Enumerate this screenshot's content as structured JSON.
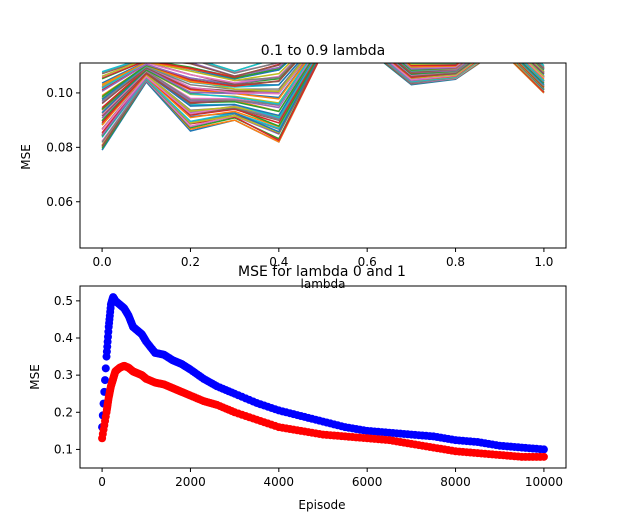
{
  "chart_data": [
    {
      "type": "line",
      "title": "0.1 to 0.9 lambda",
      "xlabel": "lambda",
      "ylabel": "MSE",
      "xlim": [
        -0.05,
        1.05
      ],
      "ylim": [
        0.043,
        0.111
      ],
      "xticks": [
        "0.0",
        "0.2",
        "0.4",
        "0.6",
        "0.8",
        "1.0"
      ],
      "yticks": [
        "0.06",
        "0.08",
        "0.10"
      ],
      "x": [
        0.0,
        0.1,
        0.2,
        0.3,
        0.4,
        0.5,
        0.6,
        0.7,
        0.8,
        0.9,
        1.0
      ],
      "series_count": 60,
      "series_lower": [
        0.079,
        0.104,
        0.086,
        0.09,
        0.082,
        0.115,
        0.116,
        0.103,
        0.105,
        0.116,
        0.1
      ],
      "series_upper": [
        0.108,
        0.113,
        0.113,
        0.108,
        0.113,
        0.125,
        0.125,
        0.111,
        0.111,
        0.125,
        0.11
      ],
      "colors": [
        "#1f77b4",
        "#ff7f0e",
        "#2ca02c",
        "#d62728",
        "#9467bd",
        "#8c564b",
        "#e377c2",
        "#7f7f7f",
        "#bcbd22",
        "#17becf"
      ],
      "grid": false
    },
    {
      "type": "scatter",
      "title": "MSE for lambda 0 and 1",
      "xlabel": "Episode",
      "ylabel": "MSE",
      "xlim": [
        -500,
        10500
      ],
      "ylim": [
        0.05,
        0.54
      ],
      "xticks": [
        "0",
        "2000",
        "4000",
        "6000",
        "8000",
        "10000"
      ],
      "yticks": [
        "0.1",
        "0.2",
        "0.3",
        "0.4",
        "0.5"
      ],
      "grid": false,
      "series": [
        {
          "color": "#0000ff",
          "x": [
            0,
            100,
            150,
            200,
            250,
            300,
            400,
            500,
            600,
            700,
            800,
            900,
            1000,
            1200,
            1400,
            1600,
            1800,
            2000,
            2300,
            2600,
            3000,
            3500,
            4000,
            4500,
            5000,
            5500,
            6000,
            6500,
            7000,
            7500,
            8000,
            8500,
            9000,
            9500,
            10000
          ],
          "values": [
            0.16,
            0.35,
            0.43,
            0.49,
            0.51,
            0.5,
            0.49,
            0.48,
            0.46,
            0.43,
            0.42,
            0.41,
            0.39,
            0.36,
            0.355,
            0.34,
            0.33,
            0.315,
            0.29,
            0.27,
            0.25,
            0.225,
            0.205,
            0.19,
            0.175,
            0.16,
            0.15,
            0.145,
            0.14,
            0.135,
            0.125,
            0.12,
            0.11,
            0.105,
            0.1
          ]
        },
        {
          "color": "#ff0000",
          "x": [
            0,
            100,
            150,
            200,
            250,
            300,
            400,
            500,
            600,
            700,
            800,
            900,
            1000,
            1200,
            1400,
            1600,
            1800,
            2000,
            2300,
            2600,
            3000,
            3500,
            4000,
            4500,
            5000,
            5500,
            6000,
            6500,
            7000,
            7500,
            8000,
            8500,
            9000,
            9500,
            10000
          ],
          "values": [
            0.13,
            0.2,
            0.24,
            0.27,
            0.29,
            0.31,
            0.32,
            0.325,
            0.32,
            0.31,
            0.305,
            0.3,
            0.29,
            0.28,
            0.275,
            0.265,
            0.255,
            0.245,
            0.23,
            0.22,
            0.2,
            0.18,
            0.16,
            0.15,
            0.14,
            0.135,
            0.13,
            0.125,
            0.115,
            0.105,
            0.095,
            0.09,
            0.085,
            0.08,
            0.08
          ]
        }
      ]
    }
  ]
}
